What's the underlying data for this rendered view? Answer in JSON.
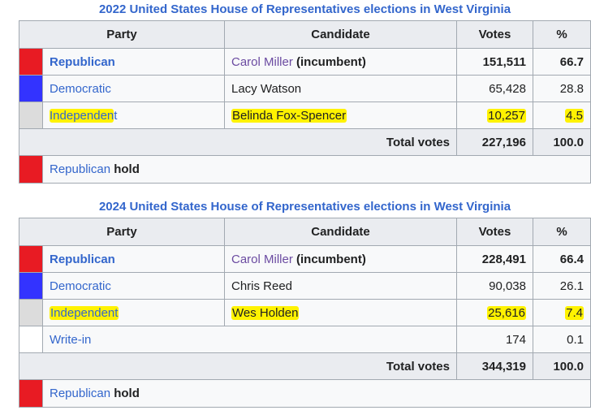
{
  "colors": {
    "republican": "#e81b23",
    "democratic": "#3333ff",
    "independent": "#dcdcdc",
    "write_in": "#ffffff",
    "highlight": "#fff200"
  },
  "headers": {
    "party": "Party",
    "candidate": "Candidate",
    "votes": "Votes",
    "percent": "%"
  },
  "t2022": {
    "caption": "2022 United States House of Representatives elections in West Virginia",
    "rows": [
      {
        "party": "Republican",
        "candidate_name": "Carol Miller",
        "candidate_suffix": " (incumbent)",
        "votes": "151,511",
        "pct": "66.7"
      },
      {
        "party": "Democratic",
        "candidate": "Lacy Watson",
        "votes": "65,428",
        "pct": "28.8"
      },
      {
        "party_hl": "Independen",
        "party_rest": "t",
        "candidate": "Belinda Fox-Spencer",
        "votes": "10,257",
        "pct": "4.5"
      }
    ],
    "total_label": "Total votes",
    "total_votes": "227,196",
    "total_pct": "100.0",
    "result_party": "Republican",
    "result_word": "hold"
  },
  "t2024": {
    "caption": "2024 United States House of Representatives elections in West Virginia",
    "rows": [
      {
        "party": "Republican",
        "candidate_name": "Carol Miller",
        "candidate_suffix": " (incumbent)",
        "votes": "228,491",
        "pct": "66.4"
      },
      {
        "party": "Democratic",
        "candidate": "Chris Reed",
        "votes": "90,038",
        "pct": "26.1"
      },
      {
        "party": "Independent",
        "candidate": "Wes Holden",
        "votes": "25,616",
        "pct": "7.4"
      },
      {
        "party": "Write-in",
        "votes": "174",
        "pct": "0.1"
      }
    ],
    "total_label": "Total votes",
    "total_votes": "344,319",
    "total_pct": "100.0",
    "result_party": "Republican",
    "result_word": "hold"
  }
}
